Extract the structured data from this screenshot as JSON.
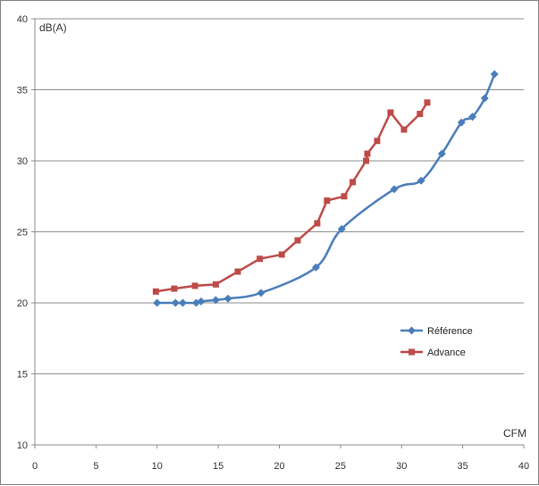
{
  "chart_data": {
    "type": "line",
    "title": "",
    "xlabel": "CFM",
    "ylabel": "dB(A)",
    "xlim": [
      0,
      40
    ],
    "ylim": [
      10,
      40
    ],
    "xticks": [
      0,
      5,
      10,
      15,
      20,
      25,
      30,
      35,
      40
    ],
    "yticks": [
      10,
      15,
      20,
      25,
      30,
      35,
      40
    ],
    "grid": "horizontal",
    "legend_position": "right",
    "series": [
      {
        "name": "Référence",
        "color": "#4a7ebb",
        "marker": "diamond",
        "smooth": true,
        "x": [
          10.0,
          11.5,
          12.1,
          13.2,
          13.6,
          14.8,
          15.8,
          18.5,
          23.0,
          25.1,
          29.4,
          31.6,
          33.3,
          34.9,
          35.8,
          36.8,
          37.6
        ],
        "y": [
          20.0,
          20.0,
          20.0,
          20.0,
          20.1,
          20.2,
          20.3,
          20.7,
          22.5,
          25.2,
          28.0,
          28.6,
          30.5,
          32.7,
          33.1,
          34.4,
          36.1
        ]
      },
      {
        "name": "Advance",
        "color": "#be4b48",
        "marker": "square",
        "smooth": false,
        "x": [
          9.9,
          11.4,
          13.1,
          14.8,
          16.6,
          18.4,
          20.2,
          21.5,
          23.1,
          23.9,
          25.3,
          26.0,
          27.1,
          27.2,
          28.0,
          29.1,
          30.2,
          31.5,
          32.1
        ],
        "y": [
          20.8,
          21.0,
          21.2,
          21.3,
          22.2,
          23.1,
          23.4,
          24.4,
          25.6,
          27.2,
          27.5,
          28.5,
          30.0,
          30.5,
          31.4,
          33.4,
          32.2,
          33.3,
          34.1
        ]
      }
    ]
  }
}
